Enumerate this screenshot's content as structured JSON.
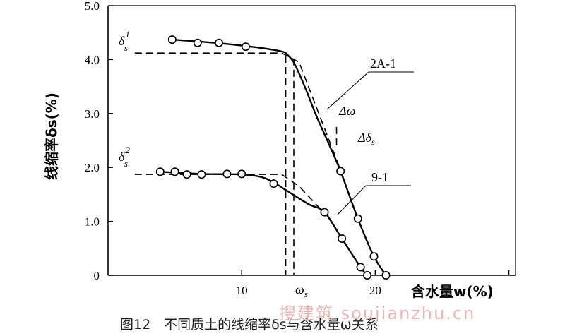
{
  "chart_data": {
    "type": "line",
    "xlabel": "含水量w(%)",
    "ylabel": "线缩率δs(%)",
    "xlim": [
      0,
      30.5
    ],
    "ylim": [
      0,
      5.0
    ],
    "x_ticks": [
      10,
      20
    ],
    "y_ticks": [
      "0",
      "1.0",
      "2.0",
      "3.0",
      "4.0",
      "5.0"
    ],
    "series": [
      {
        "name": "2A-1",
        "markers": [
          [
            4.8,
            4.37
          ],
          [
            6.7,
            4.31
          ],
          [
            8.3,
            4.31
          ],
          [
            10.3,
            4.24
          ],
          [
            17.4,
            1.93
          ],
          [
            18.7,
            1.05
          ],
          [
            19.9,
            0.35
          ],
          [
            20.8,
            0.0
          ]
        ],
        "curve": [
          [
            4.8,
            4.37
          ],
          [
            8.0,
            4.31
          ],
          [
            11.0,
            4.23
          ],
          [
            13.0,
            4.15
          ],
          [
            13.5,
            4.07
          ],
          [
            14.0,
            3.9
          ],
          [
            14.8,
            3.45
          ],
          [
            15.6,
            2.95
          ],
          [
            16.5,
            2.45
          ],
          [
            17.4,
            1.93
          ],
          [
            18.7,
            1.05
          ],
          [
            19.9,
            0.35
          ],
          [
            20.8,
            0.0
          ]
        ]
      },
      {
        "name": "9-1",
        "markers": [
          [
            3.9,
            1.92
          ],
          [
            5.0,
            1.92
          ],
          [
            5.9,
            1.87
          ],
          [
            7.0,
            1.87
          ],
          [
            8.9,
            1.88
          ],
          [
            10.0,
            1.88
          ],
          [
            12.4,
            1.7
          ],
          [
            16.2,
            1.17
          ],
          [
            17.5,
            0.68
          ],
          [
            18.9,
            0.15
          ],
          [
            19.4,
            0.0
          ]
        ],
        "curve": [
          [
            3.9,
            1.92
          ],
          [
            7.0,
            1.88
          ],
          [
            10.0,
            1.87
          ],
          [
            11.5,
            1.82
          ],
          [
            12.4,
            1.72
          ],
          [
            13.5,
            1.55
          ],
          [
            15.0,
            1.32
          ],
          [
            16.2,
            1.17
          ],
          [
            17.5,
            0.68
          ],
          [
            18.9,
            0.15
          ],
          [
            19.4,
            0.0
          ]
        ]
      }
    ],
    "tangents": [
      {
        "points": [
          [
            2.0,
            4.12
          ],
          [
            13.0,
            4.12
          ]
        ]
      },
      {
        "points": [
          [
            13.0,
            4.12
          ],
          [
            14.3,
            3.95
          ],
          [
            17.4,
            1.95
          ]
        ]
      },
      {
        "points": [
          [
            2.0,
            1.87
          ],
          [
            13.0,
            1.87
          ]
        ]
      },
      {
        "points": [
          [
            13.0,
            1.87
          ],
          [
            14.3,
            1.65
          ],
          [
            16.0,
            1.2
          ]
        ]
      },
      {
        "points": [
          [
            13.3,
            4.07
          ],
          [
            13.3,
            0.0
          ]
        ]
      },
      {
        "points": [
          [
            13.9,
            4.02
          ],
          [
            13.9,
            0.0
          ]
        ]
      },
      {
        "points": [
          [
            17.1,
            2.75
          ],
          [
            17.1,
            2.35
          ]
        ]
      }
    ],
    "annotations": {
      "ds1": "δ",
      "ds1_sub": "s",
      "ds1_sup": "1",
      "ds2": "δ",
      "ds2_sub": "s",
      "ds2_sup": "2",
      "omega_s": "ω",
      "omega_s_sub": "s",
      "label_2a1": "2A-1",
      "label_91": "9-1",
      "delta_omega": "Δω",
      "delta_ds": "Δδ",
      "delta_ds_sub": "s"
    }
  },
  "caption": {
    "text": "图12　不同质土的线缩率δs与含水量ω关系"
  },
  "watermark": {
    "text": "搜建筑 soujianzhu.cn"
  }
}
